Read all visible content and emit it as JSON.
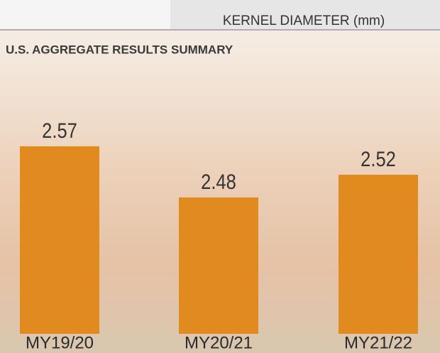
{
  "chart_data": {
    "type": "bar",
    "header": "KERNEL DIAMETER (mm)",
    "title": "U.S. AGGREGATE RESULTS SUMMARY",
    "categories": [
      "MY19/20",
      "MY20/21",
      "MY21/22"
    ],
    "values": [
      2.57,
      2.48,
      2.52
    ],
    "color": "#e08a1f",
    "ylim": [
      2.24,
      2.64
    ]
  }
}
